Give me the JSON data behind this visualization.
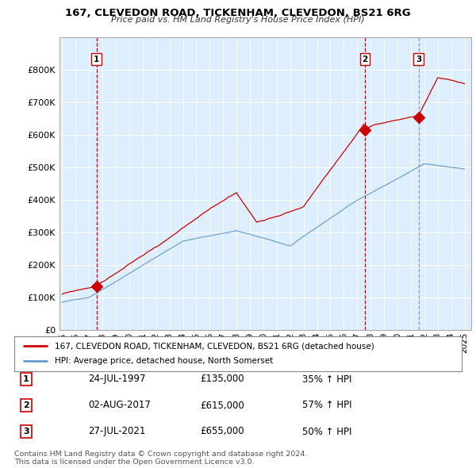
{
  "title1": "167, CLEVEDON ROAD, TICKENHAM, CLEVEDON, BS21 6RG",
  "title2": "Price paid vs. HM Land Registry's House Price Index (HPI)",
  "ylim": [
    0,
    900000
  ],
  "yticks": [
    0,
    100000,
    200000,
    300000,
    400000,
    500000,
    600000,
    700000,
    800000
  ],
  "ytick_labels": [
    "£0",
    "£100K",
    "£200K",
    "£300K",
    "£400K",
    "£500K",
    "£600K",
    "£700K",
    "£800K"
  ],
  "transactions": [
    {
      "date_x": 1997.56,
      "price": 135000,
      "label": "1"
    },
    {
      "date_x": 2017.58,
      "price": 615000,
      "label": "2"
    },
    {
      "date_x": 2021.57,
      "price": 655000,
      "label": "3"
    }
  ],
  "vline_dates": [
    1997.56,
    2017.58,
    2021.57
  ],
  "vline_styles": [
    "dashed",
    "dashed",
    "dashed"
  ],
  "legend_line1": "167, CLEVEDON ROAD, TICKENHAM, CLEVEDON, BS21 6RG (detached house)",
  "legend_line2": "HPI: Average price, detached house, North Somerset",
  "table_rows": [
    {
      "num": "1",
      "date": "24-JUL-1997",
      "price": "£135,000",
      "hpi": "35% ↑ HPI"
    },
    {
      "num": "2",
      "date": "02-AUG-2017",
      "price": "£615,000",
      "hpi": "57% ↑ HPI"
    },
    {
      "num": "3",
      "date": "27-JUL-2021",
      "price": "£655,000",
      "hpi": "50% ↑ HPI"
    }
  ],
  "footnote": "Contains HM Land Registry data © Crown copyright and database right 2024.\nThis data is licensed under the Open Government Licence v3.0.",
  "line_color_red": "#cc0000",
  "line_color_blue": "#6699cc",
  "vline_color_red": "#cc0000",
  "vline_color_gray": "#999999",
  "bg_color": "#ffffff",
  "chart_bg_color": "#ddeeff",
  "grid_color": "#ffffff",
  "xlim_start": 1994.8,
  "xlim_end": 2025.5,
  "xticks": [
    1995,
    1996,
    1997,
    1998,
    1999,
    2000,
    2001,
    2002,
    2003,
    2004,
    2005,
    2006,
    2007,
    2008,
    2009,
    2010,
    2011,
    2012,
    2013,
    2014,
    2015,
    2016,
    2017,
    2018,
    2019,
    2020,
    2021,
    2022,
    2023,
    2024,
    2025
  ]
}
